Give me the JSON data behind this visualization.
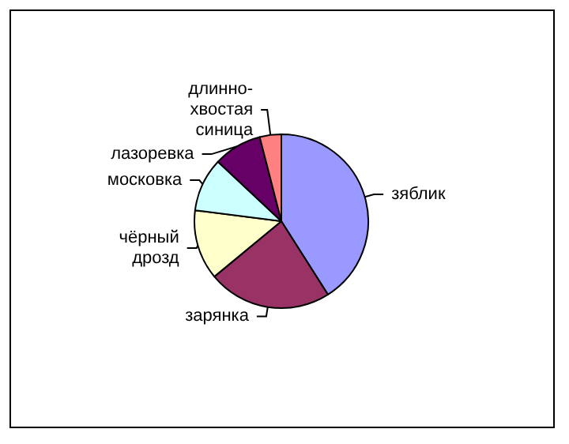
{
  "chart_data": {
    "type": "pie",
    "categories": [
      "зяблик",
      "зарянка",
      "чёрный дрозд",
      "московка",
      "лазоревка",
      "длинно-хвостая синица"
    ],
    "values": [
      41,
      23,
      13,
      10,
      9,
      4
    ],
    "colors": [
      "#9999ff",
      "#993366",
      "#ffffcc",
      "#ccffff",
      "#660066",
      "#ff8080"
    ],
    "legend": false
  }
}
